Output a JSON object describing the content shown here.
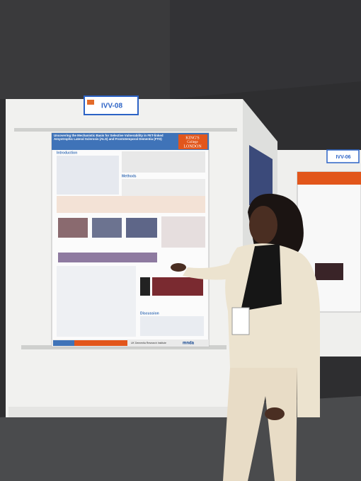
{
  "signs": [
    "IVV-08",
    "IVV-06"
  ],
  "poster": {
    "title": "Uncovering the Mechanistic Basis for Selective Vulnerability in FET-linked Amyotrophic Lateral Sclerosis (ALS) and Frontotemporal Dementia (FTD)",
    "logo": [
      "KING'S",
      "College",
      "LONDON"
    ],
    "sections": [
      "Introduction",
      "Methods",
      "Discussion"
    ],
    "footer_logos": [
      "UK Dementia Research Institute",
      "mnda"
    ]
  }
}
